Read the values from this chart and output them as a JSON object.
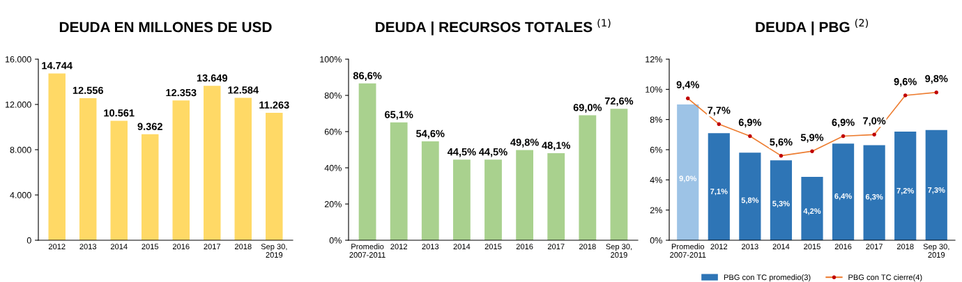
{
  "chart_data": [
    {
      "type": "bar",
      "title": "DEUDA EN MILLONES DE USD",
      "categories": [
        "2012",
        "2013",
        "2014",
        "2015",
        "2016",
        "2017",
        "2018",
        "Sep 30,\n2019"
      ],
      "values": [
        14744,
        12556,
        10561,
        9362,
        12353,
        13649,
        12584,
        11263
      ],
      "color": "#ffd966",
      "value_labels": [
        "14.744",
        "12.556",
        "10.561",
        "9.362",
        "12.353",
        "13.649",
        "12.584",
        "11.263"
      ],
      "ylim": [
        0,
        16000
      ],
      "yticks": [
        0,
        {
          "value": 4000,
          "label": "4.000"
        },
        {
          "value": 8000,
          "label": "8.000"
        },
        {
          "value": 12000,
          "label": "12.000"
        },
        {
          "value": 16000,
          "label": "16.000"
        }
      ],
      "grid": false
    },
    {
      "type": "bar",
      "title": "DEUDA | RECURSOS TOTALES $^{(1)}$",
      "categories": [
        "Promedio\n2007-2011",
        "2012",
        "2013",
        "2014",
        "2015",
        "2016",
        "2017",
        "2018",
        "Sep 30,\n2019"
      ],
      "values": [
        86.6,
        65.1,
        54.6,
        44.5,
        44.5,
        49.8,
        48.1,
        69.0,
        72.6
      ],
      "color": "#a9d18e",
      "value_labels": [
        "86,6%",
        "65,1%",
        "54,6%",
        "44,5%",
        "44,5%",
        "49,8%",
        "48,1%",
        "69,0%",
        "72,6%"
      ],
      "ylim": [
        0,
        100
      ],
      "yticks": [
        {
          "value": 0,
          "label": "0%"
        },
        {
          "value": 20,
          "label": "20%"
        },
        {
          "value": 40,
          "label": "40%"
        },
        {
          "value": 60,
          "label": "60%"
        },
        {
          "value": 80,
          "label": "80%"
        },
        {
          "value": 100,
          "label": "100%"
        }
      ],
      "grid": false
    },
    {
      "type": "bar",
      "title": "DEUDA | PBG $^{(2)}$",
      "categories": [
        "Promedio\n2007-2011",
        "2012",
        "2013",
        "2014",
        "2015",
        "2016",
        "2017",
        "2018",
        "Sep 30,\n2019"
      ],
      "series": [
        {
          "name": "PBG con TC promedio(3)",
          "type": "bar",
          "color": "#2e75b6",
          "colors": [
            "#9dc3e6",
            "#2e75b6",
            "#2e75b6",
            "#2e75b6",
            "#2e75b6",
            "#2e75b6",
            "#2e75b6",
            "#2e75b6",
            "#2e75b6"
          ],
          "values": [
            9.0,
            7.1,
            5.8,
            5.3,
            4.2,
            6.4,
            6.3,
            7.2,
            7.3
          ],
          "value_labels": [
            "9,0%",
            "7,1%",
            "5,8%",
            "5,3%",
            "4,2%",
            "6,4%",
            "6,3%",
            "7,2%",
            "7,3%"
          ]
        },
        {
          "name": "PBG con TC cierre(4)",
          "type": "line",
          "color": "#ed7d31",
          "marker": "circle",
          "values": [
            9.4,
            7.7,
            6.9,
            5.6,
            5.9,
            6.9,
            7.0,
            9.6,
            9.8
          ],
          "value_labels": [
            "9,4%",
            "7,7%",
            "6,9%",
            "5,6%",
            "5,9%",
            "6,9%",
            "7,0%",
            "9,6%",
            "9,8%"
          ]
        }
      ],
      "ylim": [
        0,
        12
      ],
      "yticks": [
        {
          "value": 0,
          "label": "0%"
        },
        {
          "value": 2,
          "label": "2%"
        },
        {
          "value": 4,
          "label": "4%"
        },
        {
          "value": 6,
          "label": "6%"
        },
        {
          "value": 8,
          "label": "8%"
        },
        {
          "value": 10,
          "label": "10%"
        },
        {
          "value": 12,
          "label": "12%"
        }
      ],
      "grid": false,
      "legend": "bottom"
    }
  ]
}
